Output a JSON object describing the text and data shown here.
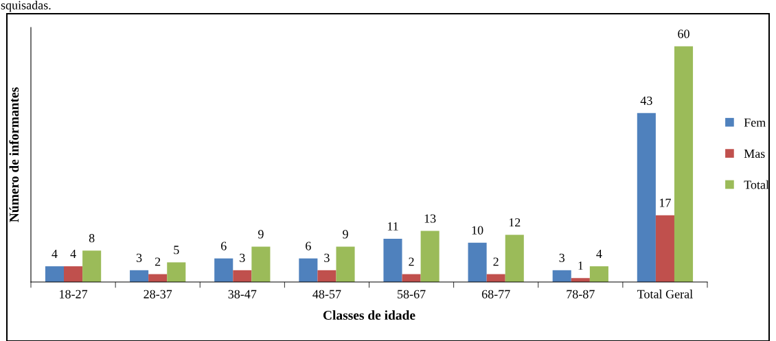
{
  "chart_data": {
    "type": "bar",
    "xlabel": "Classes de idade",
    "ylabel": "Número de informantes",
    "categories": [
      "18-27",
      "28-37",
      "38-47",
      "48-57",
      "58-67",
      "68-77",
      "78-87",
      "Total Geral"
    ],
    "series": [
      {
        "name": "Fem",
        "color": "#4f81bd",
        "values": [
          4,
          3,
          6,
          6,
          11,
          10,
          3,
          43
        ]
      },
      {
        "name": "Mas",
        "color": "#c0504d",
        "values": [
          4,
          2,
          3,
          3,
          2,
          2,
          1,
          17
        ]
      },
      {
        "name": "Total",
        "color": "#9bbb59",
        "values": [
          8,
          5,
          9,
          9,
          13,
          12,
          4,
          60
        ]
      }
    ],
    "data_labels": true,
    "legend": "right",
    "grid": false,
    "annotations": [
      "squisadas."
    ]
  }
}
